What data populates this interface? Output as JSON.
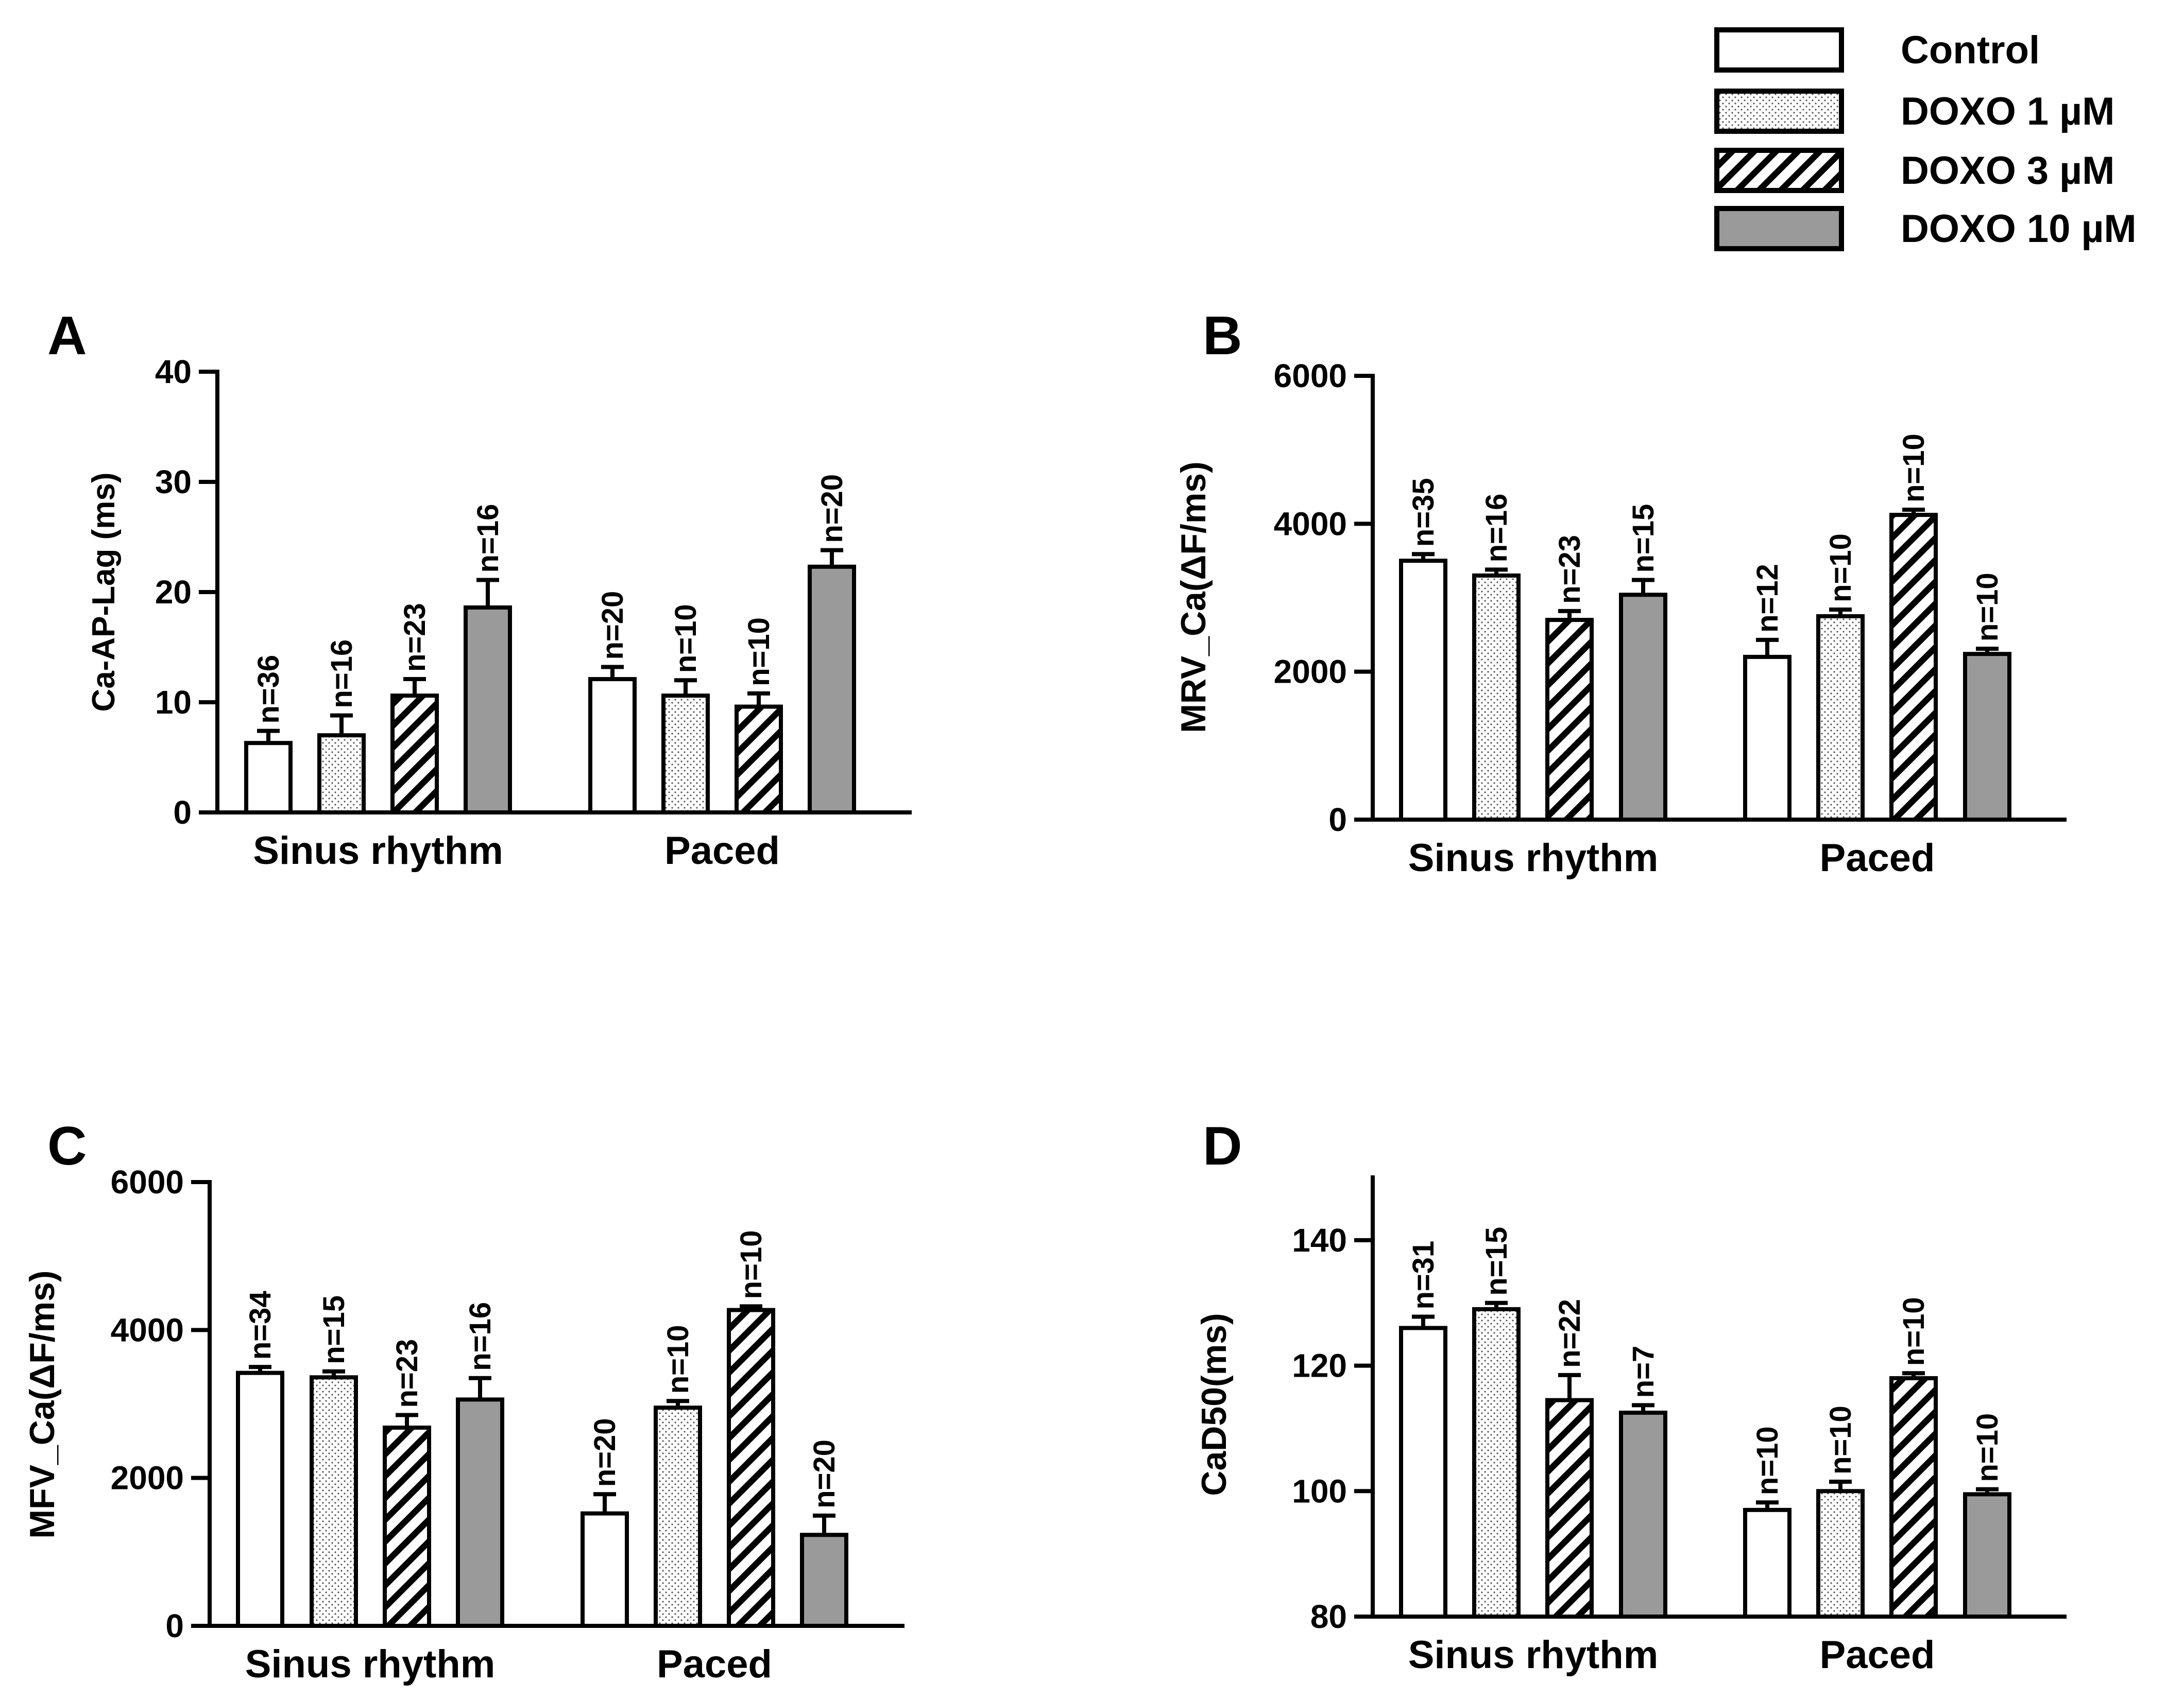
{
  "legend": {
    "items": [
      {
        "label": "Control",
        "pattern": "white"
      },
      {
        "label": "DOXO 1 µM",
        "pattern": "dots"
      },
      {
        "label": "DOXO 3 µM",
        "pattern": "hatch"
      },
      {
        "label": "DOXO 10 µM",
        "pattern": "gray"
      }
    ]
  },
  "colors": {
    "axis": "#000000",
    "bar_gray": "#9a9a9a",
    "background": "#ffffff"
  },
  "chart_data": [
    {
      "panel": "A",
      "type": "bar",
      "ylabel": "Ca-AP-Lag (ms)",
      "ylim": [
        0,
        40
      ],
      "yticks": [
        0,
        10,
        20,
        30,
        40
      ],
      "categories": [
        "Sinus rhythm",
        "Paced"
      ],
      "series": [
        {
          "name": "Control",
          "values": [
            6.3,
            12.1
          ],
          "errors": [
            1.1,
            1.1
          ],
          "n": [
            "n=36",
            "n=20"
          ]
        },
        {
          "name": "DOXO 1 µM",
          "values": [
            7.0,
            10.6
          ],
          "errors": [
            1.8,
            1.4
          ],
          "n": [
            "n=16",
            "n=10"
          ]
        },
        {
          "name": "DOXO 3 µM",
          "values": [
            10.6,
            9.6
          ],
          "errors": [
            1.5,
            1.2
          ],
          "n": [
            "n=23",
            "n=10"
          ]
        },
        {
          "name": "DOXO 10 µM",
          "values": [
            18.6,
            22.3
          ],
          "errors": [
            2.5,
            1.5
          ],
          "n": [
            "n=16",
            "n=20"
          ]
        }
      ]
    },
    {
      "panel": "B",
      "type": "bar",
      "ylabel": "MRV_Ca(ΔF/ms)",
      "ylim": [
        0,
        6000
      ],
      "yticks": [
        0,
        2000,
        4000,
        6000
      ],
      "categories": [
        "Sinus rhythm",
        "Paced"
      ],
      "series": [
        {
          "name": "Control",
          "values": [
            3500,
            2200
          ],
          "errors": [
            90,
            230
          ],
          "n": [
            "n=35",
            "n=12"
          ]
        },
        {
          "name": "DOXO 1 µM",
          "values": [
            3300,
            2750
          ],
          "errors": [
            80,
            90
          ],
          "n": [
            "n=16",
            "n=10"
          ]
        },
        {
          "name": "DOXO 3 µM",
          "values": [
            2700,
            4120
          ],
          "errors": [
            120,
            70
          ],
          "n": [
            "n=23",
            "n=10"
          ]
        },
        {
          "name": "DOXO 10 µM",
          "values": [
            3040,
            2240
          ],
          "errors": [
            200,
            70
          ],
          "n": [
            "n=15",
            "n=10"
          ]
        }
      ]
    },
    {
      "panel": "C",
      "type": "bar",
      "ylabel": "MFV_Ca(ΔF/ms)",
      "ylim": [
        0,
        6000
      ],
      "yticks": [
        0,
        2000,
        4000,
        6000
      ],
      "categories": [
        "Sinus rhythm",
        "Paced"
      ],
      "series": [
        {
          "name": "Control",
          "values": [
            3420,
            1520
          ],
          "errors": [
            80,
            260
          ],
          "n": [
            "n=34",
            "n=20"
          ]
        },
        {
          "name": "DOXO 1 µM",
          "values": [
            3360,
            2950
          ],
          "errors": [
            80,
            90
          ],
          "n": [
            "n=15",
            "n=10"
          ]
        },
        {
          "name": "DOXO 3 µM",
          "values": [
            2680,
            4270
          ],
          "errors": [
            170,
            50
          ],
          "n": [
            "n=23",
            "n=10"
          ]
        },
        {
          "name": "DOXO 10 µM",
          "values": [
            3060,
            1230
          ],
          "errors": [
            290,
            260
          ],
          "n": [
            "n=16",
            "n=20"
          ]
        }
      ]
    },
    {
      "panel": "D",
      "type": "bar",
      "ylabel": "CaD50(ms)",
      "ylim": [
        80,
        150
      ],
      "yticks": [
        80,
        100,
        120,
        140
      ],
      "categories": [
        "Sinus rhythm",
        "Paced"
      ],
      "series": [
        {
          "name": "Control",
          "values": [
            126,
            97
          ],
          "errors": [
            1.8,
            1.2
          ],
          "n": [
            "n=31",
            "n=10"
          ]
        },
        {
          "name": "DOXO 1 µM",
          "values": [
            129,
            100
          ],
          "errors": [
            1.0,
            1.5
          ],
          "n": [
            "n=15",
            "n=10"
          ]
        },
        {
          "name": "DOXO 3 µM",
          "values": [
            114.5,
            118
          ],
          "errors": [
            4.0,
            0.8
          ],
          "n": [
            "n=22",
            "n=10"
          ]
        },
        {
          "name": "DOXO 10 µM",
          "values": [
            112.5,
            99.5
          ],
          "errors": [
            1.2,
            0.8
          ],
          "n": [
            "n=7",
            "n=10"
          ]
        }
      ]
    }
  ]
}
